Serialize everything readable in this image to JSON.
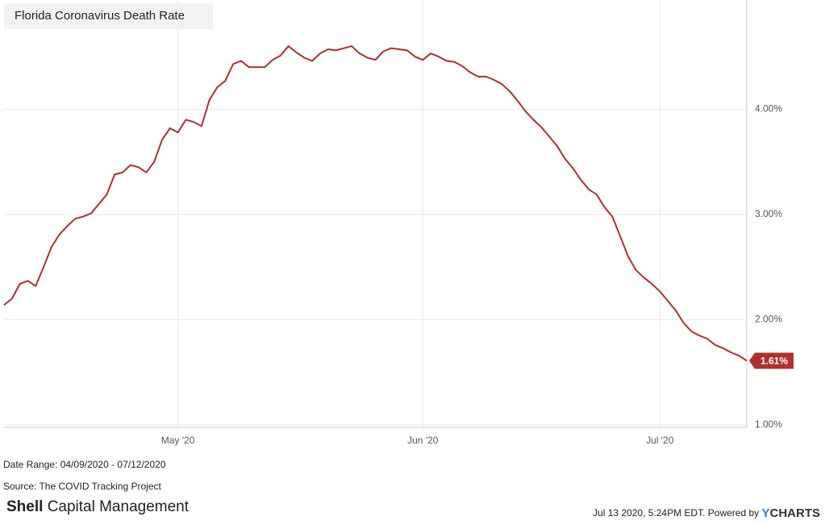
{
  "chart_data": {
    "type": "line",
    "title": "Florida Coronavirus Death Rate",
    "x": [
      "2020-04-09",
      "2020-04-10",
      "2020-04-11",
      "2020-04-12",
      "2020-04-13",
      "2020-04-14",
      "2020-04-15",
      "2020-04-16",
      "2020-04-17",
      "2020-04-18",
      "2020-04-19",
      "2020-04-20",
      "2020-04-21",
      "2020-04-22",
      "2020-04-23",
      "2020-04-24",
      "2020-04-25",
      "2020-04-26",
      "2020-04-27",
      "2020-04-28",
      "2020-04-29",
      "2020-04-30",
      "2020-05-01",
      "2020-05-02",
      "2020-05-03",
      "2020-05-04",
      "2020-05-05",
      "2020-05-06",
      "2020-05-07",
      "2020-05-08",
      "2020-05-09",
      "2020-05-10",
      "2020-05-11",
      "2020-05-12",
      "2020-05-13",
      "2020-05-14",
      "2020-05-15",
      "2020-05-16",
      "2020-05-17",
      "2020-05-18",
      "2020-05-19",
      "2020-05-20",
      "2020-05-21",
      "2020-05-22",
      "2020-05-23",
      "2020-05-24",
      "2020-05-25",
      "2020-05-26",
      "2020-05-27",
      "2020-05-28",
      "2020-05-29",
      "2020-05-30",
      "2020-05-31",
      "2020-06-01",
      "2020-06-02",
      "2020-06-03",
      "2020-06-04",
      "2020-06-05",
      "2020-06-06",
      "2020-06-07",
      "2020-06-08",
      "2020-06-09",
      "2020-06-10",
      "2020-06-11",
      "2020-06-12",
      "2020-06-13",
      "2020-06-14",
      "2020-06-15",
      "2020-06-16",
      "2020-06-17",
      "2020-06-18",
      "2020-06-19",
      "2020-06-20",
      "2020-06-21",
      "2020-06-22",
      "2020-06-23",
      "2020-06-24",
      "2020-06-25",
      "2020-06-26",
      "2020-06-27",
      "2020-06-28",
      "2020-06-29",
      "2020-06-30",
      "2020-07-01",
      "2020-07-02",
      "2020-07-03",
      "2020-07-04",
      "2020-07-05",
      "2020-07-06",
      "2020-07-07",
      "2020-07-08",
      "2020-07-09",
      "2020-07-10",
      "2020-07-11",
      "2020-07-12"
    ],
    "series": [
      {
        "color": "#b0302a",
        "values": [
          2.14,
          2.2,
          2.34,
          2.37,
          2.32,
          2.5,
          2.69,
          2.81,
          2.89,
          2.96,
          2.98,
          3.01,
          3.1,
          3.19,
          3.38,
          3.4,
          3.47,
          3.45,
          3.4,
          3.5,
          3.71,
          3.82,
          3.78,
          3.9,
          3.88,
          3.84,
          4.09,
          4.21,
          4.27,
          4.43,
          4.46,
          4.4,
          4.4,
          4.4,
          4.47,
          4.51,
          4.6,
          4.54,
          4.49,
          4.46,
          4.53,
          4.57,
          4.56,
          4.58,
          4.6,
          4.53,
          4.49,
          4.47,
          4.55,
          4.58,
          4.57,
          4.56,
          4.5,
          4.47,
          4.53,
          4.5,
          4.46,
          4.45,
          4.41,
          4.35,
          4.31,
          4.31,
          4.28,
          4.24,
          4.17,
          4.08,
          3.98,
          3.9,
          3.83,
          3.74,
          3.65,
          3.53,
          3.44,
          3.33,
          3.24,
          3.19,
          3.07,
          2.98,
          2.79,
          2.6,
          2.47,
          2.4,
          2.34,
          2.27,
          2.18,
          2.09,
          1.97,
          1.89,
          1.85,
          1.82,
          1.76,
          1.73,
          1.69,
          1.66,
          1.61
        ],
        "value_labels": [
          null,
          null,
          null,
          null,
          null,
          null,
          null,
          null,
          null,
          null,
          null,
          null,
          null,
          null,
          null,
          null,
          null,
          null,
          null,
          null,
          null,
          null,
          null,
          null,
          null,
          null,
          null,
          null,
          null,
          null,
          null,
          null,
          null,
          null,
          null,
          null,
          null,
          null,
          null,
          null,
          null,
          null,
          null,
          null,
          null,
          null,
          null,
          null,
          null,
          null,
          null,
          null,
          null,
          null,
          null,
          null,
          null,
          null,
          null,
          null,
          null,
          null,
          null,
          null,
          null,
          null,
          null,
          null,
          null,
          null,
          null,
          null,
          null,
          null,
          null,
          null,
          null,
          null,
          null,
          null,
          null,
          null,
          null,
          null,
          null,
          null,
          null,
          null,
          null,
          null,
          null,
          null,
          null,
          null,
          "1.61%"
        ]
      }
    ],
    "xlim": [
      "2020-04-09",
      "2020-07-12"
    ],
    "xticks": [
      {
        "value": "2020-05-01",
        "label": "May '20"
      },
      {
        "value": "2020-06-01",
        "label": "Jun '20"
      },
      {
        "value": "2020-07-01",
        "label": "Jul '20"
      }
    ],
    "ylim": [
      0.977,
      5.0
    ],
    "yticks": [
      {
        "value": 1,
        "label": "1.00%"
      },
      {
        "value": 2,
        "label": "2.00%"
      },
      {
        "value": 3,
        "label": "3.00%"
      },
      {
        "value": 4,
        "label": "4.00%"
      }
    ],
    "grid": true
  },
  "footer": {
    "date_range": "Date Range: 04/09/2020 - 07/12/2020",
    "source": "Source: The COVID Tracking Project",
    "brand_bold": "Shell",
    "brand_rest": "Capital Management",
    "timestamp": "Jul 13 2020, 5:24PM EDT. Powered by",
    "powered_y": "Y",
    "powered_rest": "CHARTS"
  }
}
